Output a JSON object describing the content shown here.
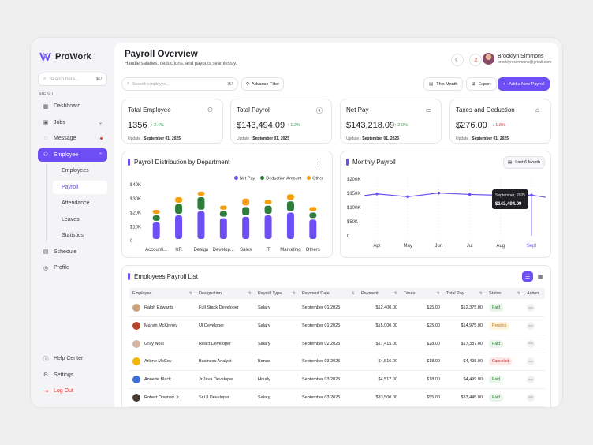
{
  "app": {
    "name": "ProWork"
  },
  "sidebar": {
    "search_placeholder": "Search here...",
    "search_shortcut": "⌘/",
    "menu_label": "MENU",
    "items": [
      {
        "label": "Dashboard",
        "icon": "grid-icon"
      },
      {
        "label": "Jobs",
        "icon": "briefcase-icon"
      },
      {
        "label": "Message",
        "icon": "chat-icon"
      },
      {
        "label": "Employee",
        "icon": "users-icon"
      }
    ],
    "employee_sub": [
      "Employees",
      "Payroll",
      "Attendance",
      "Leaves",
      "Statistics"
    ],
    "items2": [
      {
        "label": "Schedule",
        "icon": "calendar-icon"
      },
      {
        "label": "Profile",
        "icon": "user-icon"
      }
    ],
    "bottom": [
      {
        "label": "Help Center",
        "icon": "help-icon"
      },
      {
        "label": "Settings",
        "icon": "gear-icon"
      },
      {
        "label": "Log Out",
        "icon": "logout-icon"
      }
    ]
  },
  "header": {
    "title": "Payroll Overview",
    "subtitle": "Handle salaries, deductions, and payouts seamlessly.",
    "user_name": "Brooklyn Simmons",
    "user_email": "brooklyn.simmons@gmail.com"
  },
  "toolbar": {
    "search_placeholder": "Search employee...",
    "search_shortcut": "⌘/",
    "filter_label": "Advance Filter",
    "period_label": "This Month",
    "export_label": "Export",
    "add_label": "Add a New Payroll"
  },
  "stats": [
    {
      "label": "Total Employee",
      "value": "1356",
      "change": "2.4%",
      "dir": "up",
      "update_prefix": "Update :",
      "update_date": "September 01, 2025"
    },
    {
      "label": "Total Payroll",
      "value": "$143,494.09",
      "change": "1.2%",
      "dir": "up",
      "update_prefix": "Update :",
      "update_date": "September 01, 2025"
    },
    {
      "label": "Net Pay",
      "value": "$143,218.09",
      "change": "2.0%",
      "dir": "up",
      "update_prefix": "Update :",
      "update_date": "September 01, 2025"
    },
    {
      "label": "Taxes and Deduction",
      "value": "$276.00",
      "change": "1.8%",
      "dir": "down",
      "update_prefix": "Update :",
      "update_date": "September 01, 2025"
    }
  ],
  "dept_chart": {
    "title": "Payroll Distribution by Department",
    "legend": [
      "Net Pay",
      "Deduction Amount",
      "Other"
    ],
    "colors": {
      "net": "#6d4ff5",
      "deduction": "#2e7d3a",
      "other": "#f59e0b"
    }
  },
  "monthly_chart": {
    "title": "Monthly Payroll",
    "period": "Last 6 Month",
    "tooltip_date": "September, 2025",
    "tooltip_value": "$143,494.09"
  },
  "chart_data": [
    {
      "type": "bar",
      "title": "Payroll Distribution by Department",
      "categories": [
        "Accounti...",
        "HR",
        "Design",
        "Develop...",
        "Sales",
        "IT",
        "Marketing",
        "Others"
      ],
      "yticks": [
        "$40K",
        "$30K",
        "$20K",
        "$10K",
        "0"
      ],
      "ylim": [
        0,
        40000
      ],
      "series": [
        {
          "name": "Net Pay",
          "values": [
            13000,
            18000,
            21000,
            16000,
            17000,
            18000,
            20000,
            15000
          ]
        },
        {
          "name": "Deduction Amount",
          "values": [
            5000,
            8000,
            10000,
            5000,
            7000,
            7000,
            8000,
            5000
          ]
        },
        {
          "name": "Other",
          "values": [
            4000,
            5000,
            4000,
            4000,
            6000,
            4000,
            5000,
            4000
          ]
        }
      ]
    },
    {
      "type": "line",
      "title": "Monthly Payroll",
      "categories": [
        "Apr",
        "May",
        "Jun",
        "Jul",
        "Aug",
        "Sept"
      ],
      "yticks": [
        "$200K",
        "$150K",
        "$100K",
        "$50K",
        "0"
      ],
      "ylim": [
        0,
        200000
      ],
      "series": [
        {
          "name": "",
          "values": [
            148000,
            138000,
            151000,
            146000,
            143000,
            143494
          ]
        }
      ],
      "start_value": 142000,
      "end_value": 136000
    }
  ],
  "table": {
    "title": "Employees Payroll List",
    "columns": [
      "Employee",
      "Designation",
      "Payroll Type",
      "Payment Date",
      "Payment",
      "Taxes",
      "Total Pay",
      "Status",
      "Action"
    ],
    "rows": [
      {
        "name": "Ralph Edwards",
        "designation": "Full Stack Developer",
        "type": "Salary",
        "date": "September 01,2025",
        "payment": "$12,400.00",
        "taxes": "$25.00",
        "total": "$12,375.00",
        "status": "Paid",
        "avatar": "#c9a27e"
      },
      {
        "name": "Marvin McKinney",
        "designation": "UI Developer",
        "type": "Salary",
        "date": "September 01,2025",
        "payment": "$15,000.00",
        "taxes": "$25.00",
        "total": "$14,975.00",
        "status": "Pending",
        "avatar": "#b5442b"
      },
      {
        "name": "Gray Noal",
        "designation": "React Developer",
        "type": "Salary",
        "date": "September 02,2025",
        "payment": "$17,415.00",
        "taxes": "$28.00",
        "total": "$17,387.00",
        "status": "Paid",
        "avatar": "#d8b4a0"
      },
      {
        "name": "Arlene McCoy",
        "designation": "Business Analyst",
        "type": "Bonus",
        "date": "September 03,2025",
        "payment": "$4,516.00",
        "taxes": "$18.00",
        "total": "$4,498.00",
        "status": "Canceled",
        "avatar": "#f2b705"
      },
      {
        "name": "Annette Black",
        "designation": "Jr.Java Developer",
        "type": "Hourly",
        "date": "September 03,2025",
        "payment": "$4,517.00",
        "taxes": "$18.00",
        "total": "$4,499.00",
        "status": "Paid",
        "avatar": "#3f6fd8"
      },
      {
        "name": "Robert Downey Jr.",
        "designation": "Sr.UI Developer",
        "type": "Salary",
        "date": "September 03,2025",
        "payment": "$33,500.00",
        "taxes": "$55.00",
        "total": "$33,445.00",
        "status": "Paid",
        "avatar": "#4a3a34"
      }
    ]
  }
}
